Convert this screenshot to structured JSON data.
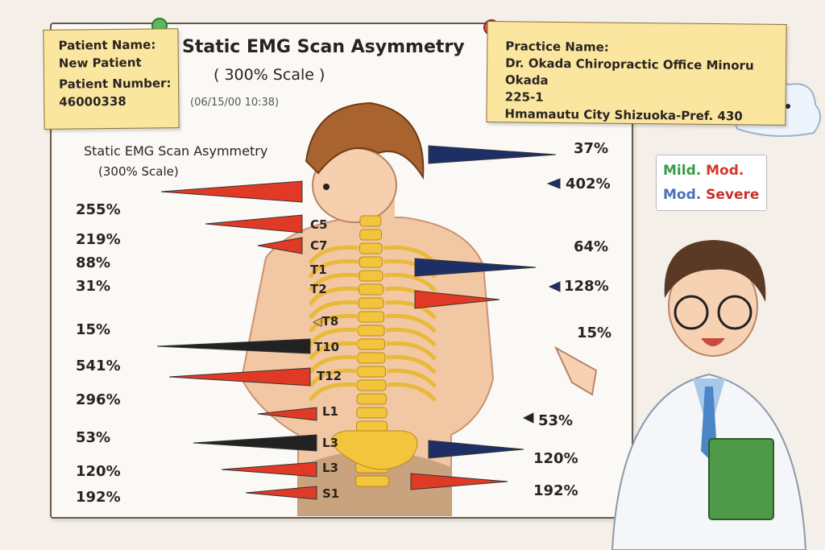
{
  "patient_note": {
    "name_label": "Patient Name:",
    "name_value": "New Patient",
    "number_label": "Patient Number:",
    "number_value": "46000338"
  },
  "header": {
    "title": "Static EMG Scan Asymmetry",
    "scale": "( 300% Scale )",
    "datetime": "(06/15/00 10:38)"
  },
  "chart_header": {
    "title": "Static EMG Scan Asymmetry",
    "scale": "(300% Scale)"
  },
  "practice_note": {
    "label": "Practice Name:",
    "line1": "Dr. Okada Chiropractic Office Minoru Okada",
    "line2": "225-1",
    "line3": "Hmamautu City Shizuoka-Pref. 430"
  },
  "legend": {
    "items": [
      {
        "label": "Mild.",
        "color": "#3a9a48"
      },
      {
        "label": "Mod.",
        "color": "#d23a2c"
      },
      {
        "label": "Mod.",
        "color": "#4a72b8"
      },
      {
        "label": "Severe",
        "color": "#c8302a"
      }
    ]
  },
  "left_values": [
    "255%",
    "219%",
    "88%",
    "31%",
    "15%",
    "541%",
    "296%",
    "53%",
    "120%",
    "192%"
  ],
  "right_values": [
    "37%",
    "402%",
    "64%",
    "128%",
    "15%",
    "53%",
    "120%",
    "192%"
  ],
  "vertebrae": [
    "C5",
    "C7",
    "T1",
    "T2",
    "◁T8",
    "T10",
    "T12",
    "L1",
    "L3",
    "L3",
    "S1"
  ],
  "colors": {
    "red": "#e03a26",
    "navy": "#1e2f66",
    "black": "#222222",
    "spine": "#f2c53d"
  }
}
